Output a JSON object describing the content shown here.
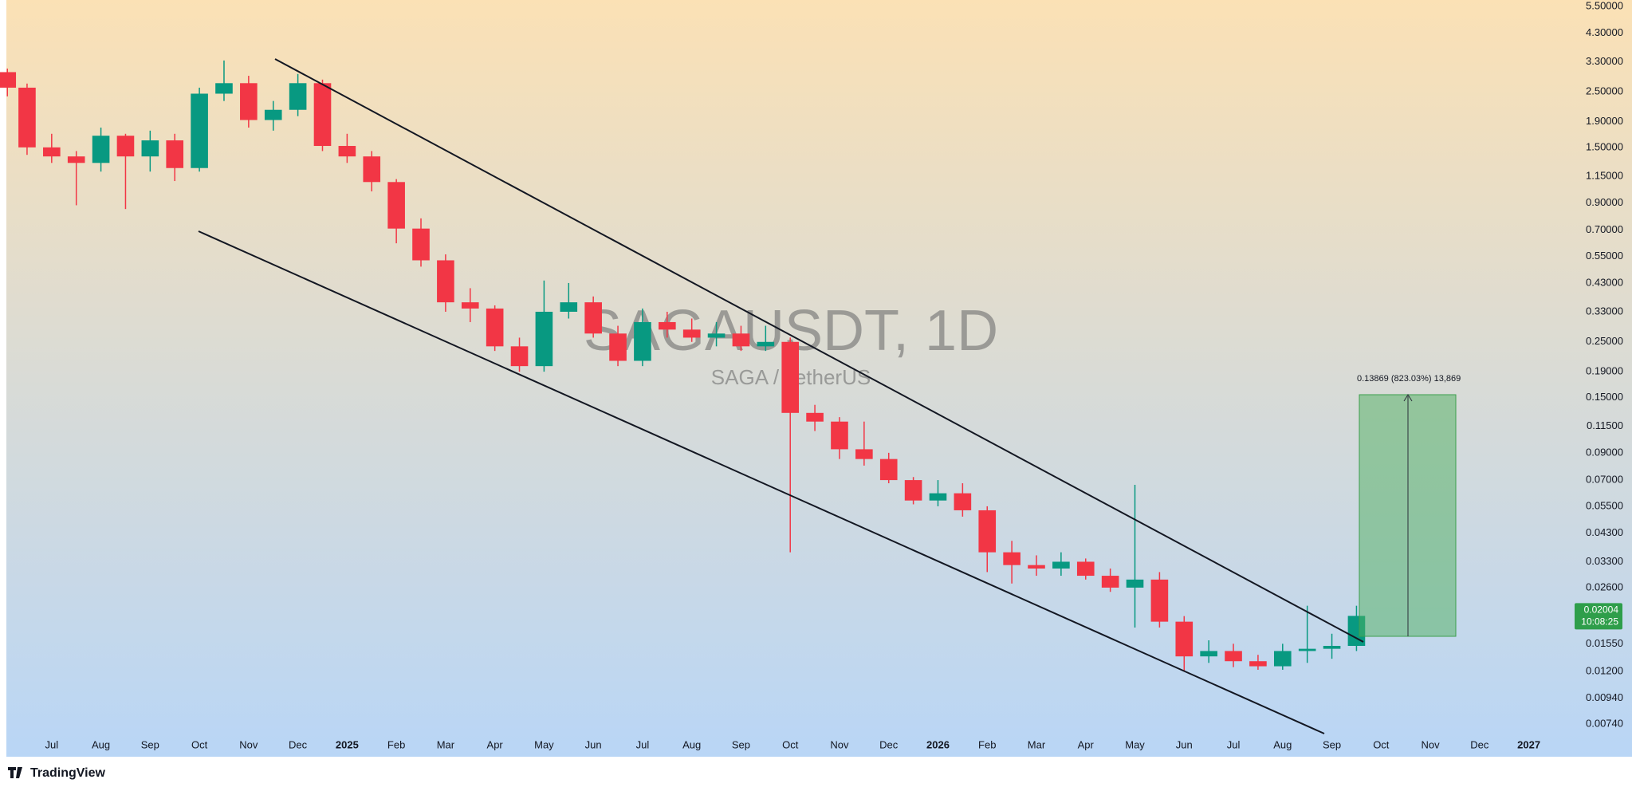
{
  "chart_data": {
    "type": "candlestick",
    "title": "SAGAUSDT, 1D",
    "subtitle": "SAGA / TetherUS",
    "log_scale": true,
    "grid": false,
    "up_color": "#089981",
    "down_color": "#f23645",
    "x": [
      -0.9,
      -0.5,
      0,
      0.5,
      1,
      1.5,
      2,
      2.5,
      3,
      3.5,
      4,
      4.5,
      5,
      5.5,
      6,
      6.5,
      7,
      7.5,
      8,
      8.5,
      9,
      9.5,
      10,
      10.5,
      11,
      11.5,
      12,
      12.5,
      13,
      13.5,
      14,
      14.5,
      15,
      15.5,
      16,
      16.5,
      17,
      17.5,
      18,
      18.5,
      19,
      19.5,
      20,
      20.5,
      21,
      21.5,
      22,
      22.5,
      23,
      23.5,
      24,
      24.5,
      25,
      25.5,
      26,
      26.5
    ],
    "open": [
      3.0,
      2.6,
      1.5,
      1.38,
      1.3,
      1.67,
      1.38,
      1.6,
      1.24,
      2.46,
      2.71,
      1.93,
      2.12,
      2.71,
      1.52,
      1.38,
      1.09,
      0.71,
      0.53,
      0.36,
      0.34,
      0.24,
      0.2,
      0.33,
      0.36,
      0.27,
      0.21,
      0.3,
      0.28,
      0.26,
      0.27,
      0.24,
      0.25,
      0.13,
      0.12,
      0.093,
      0.085,
      0.07,
      0.058,
      0.062,
      0.053,
      0.036,
      0.032,
      0.031,
      0.033,
      0.029,
      0.026,
      0.028,
      0.019,
      0.0138,
      0.0145,
      0.0132,
      0.0126,
      0.0145,
      0.0148,
      0.0152
    ],
    "high": [
      3.1,
      2.7,
      1.7,
      1.45,
      1.8,
      1.7,
      1.75,
      1.7,
      2.6,
      3.34,
      2.9,
      2.3,
      2.95,
      2.8,
      1.7,
      1.45,
      1.12,
      0.78,
      0.56,
      0.41,
      0.35,
      0.26,
      0.44,
      0.43,
      0.38,
      0.29,
      0.34,
      0.33,
      0.31,
      0.3,
      0.29,
      0.29,
      0.26,
      0.14,
      0.125,
      0.12,
      0.09,
      0.072,
      0.07,
      0.068,
      0.055,
      0.04,
      0.035,
      0.036,
      0.034,
      0.031,
      0.067,
      0.03,
      0.02,
      0.016,
      0.0155,
      0.014,
      0.0155,
      0.022,
      0.017,
      0.022
    ],
    "low": [
      2.4,
      1.4,
      1.3,
      0.88,
      1.2,
      0.85,
      1.2,
      1.1,
      1.2,
      2.3,
      1.8,
      1.75,
      2.0,
      1.45,
      1.3,
      1.0,
      0.62,
      0.5,
      0.33,
      0.3,
      0.23,
      0.19,
      0.19,
      0.31,
      0.26,
      0.2,
      0.2,
      0.26,
      0.25,
      0.24,
      0.23,
      0.23,
      0.036,
      0.11,
      0.085,
      0.08,
      0.068,
      0.056,
      0.055,
      0.05,
      0.03,
      0.027,
      0.029,
      0.029,
      0.028,
      0.025,
      0.018,
      0.018,
      0.012,
      0.013,
      0.0125,
      0.0122,
      0.0122,
      0.013,
      0.0135,
      0.0145
    ],
    "close": [
      2.6,
      1.5,
      1.38,
      1.3,
      1.67,
      1.38,
      1.6,
      1.24,
      2.46,
      2.71,
      1.93,
      2.12,
      2.71,
      1.52,
      1.38,
      1.09,
      0.71,
      0.53,
      0.36,
      0.34,
      0.24,
      0.2,
      0.33,
      0.36,
      0.27,
      0.21,
      0.3,
      0.28,
      0.26,
      0.27,
      0.24,
      0.25,
      0.13,
      0.12,
      0.093,
      0.085,
      0.07,
      0.058,
      0.062,
      0.053,
      0.036,
      0.032,
      0.031,
      0.033,
      0.029,
      0.026,
      0.028,
      0.019,
      0.0138,
      0.0145,
      0.0132,
      0.0126,
      0.0145,
      0.0148,
      0.0152,
      0.02004
    ],
    "xlim": [
      -0.92,
      30.8
    ],
    "xticks": [
      {
        "value": 0,
        "label": "Jul"
      },
      {
        "value": 1,
        "label": "Aug"
      },
      {
        "value": 2,
        "label": "Sep"
      },
      {
        "value": 3,
        "label": "Oct"
      },
      {
        "value": 4,
        "label": "Nov"
      },
      {
        "value": 5,
        "label": "Dec"
      },
      {
        "value": 6,
        "label": "2025"
      },
      {
        "value": 7,
        "label": "Feb"
      },
      {
        "value": 8,
        "label": "Mar"
      },
      {
        "value": 9,
        "label": "Apr"
      },
      {
        "value": 10,
        "label": "May"
      },
      {
        "value": 11,
        "label": "Jun"
      },
      {
        "value": 12,
        "label": "Jul"
      },
      {
        "value": 13,
        "label": "Aug"
      },
      {
        "value": 14,
        "label": "Sep"
      },
      {
        "value": 15,
        "label": "Oct"
      },
      {
        "value": 16,
        "label": "Nov"
      },
      {
        "value": 17,
        "label": "Dec"
      },
      {
        "value": 18,
        "label": "2026"
      },
      {
        "value": 19,
        "label": "Feb"
      },
      {
        "value": 20,
        "label": "Mar"
      },
      {
        "value": 21,
        "label": "Apr"
      },
      {
        "value": 22,
        "label": "May"
      },
      {
        "value": 23,
        "label": "Jun"
      },
      {
        "value": 24,
        "label": "Jul"
      },
      {
        "value": 25,
        "label": "Aug"
      },
      {
        "value": 26,
        "label": "Sep"
      },
      {
        "value": 27,
        "label": "Oct"
      },
      {
        "value": 28,
        "label": "Nov"
      },
      {
        "value": 29,
        "label": "Dec"
      },
      {
        "value": 30,
        "label": "2027"
      }
    ],
    "ylim": [
      0.00658,
      5.83
    ],
    "yticks": [
      {
        "value": 5.5,
        "label": "5.50000"
      },
      {
        "value": 4.3,
        "label": "4.30000"
      },
      {
        "value": 3.3,
        "label": "3.30000"
      },
      {
        "value": 2.5,
        "label": "2.50000"
      },
      {
        "value": 1.9,
        "label": "1.90000"
      },
      {
        "value": 1.5,
        "label": "1.50000"
      },
      {
        "value": 1.15,
        "label": "1.15000"
      },
      {
        "value": 0.9,
        "label": "0.90000"
      },
      {
        "value": 0.7,
        "label": "0.70000"
      },
      {
        "value": 0.55,
        "label": "0.55000"
      },
      {
        "value": 0.43,
        "label": "0.43000"
      },
      {
        "value": 0.33,
        "label": "0.33000"
      },
      {
        "value": 0.25,
        "label": "0.25000"
      },
      {
        "value": 0.19,
        "label": "0.19000"
      },
      {
        "value": 0.15,
        "label": "0.15000"
      },
      {
        "value": 0.115,
        "label": "0.11500"
      },
      {
        "value": 0.09,
        "label": "0.09000"
      },
      {
        "value": 0.07,
        "label": "0.07000"
      },
      {
        "value": 0.055,
        "label": "0.05500"
      },
      {
        "value": 0.043,
        "label": "0.04300"
      },
      {
        "value": 0.033,
        "label": "0.03300"
      },
      {
        "value": 0.026,
        "label": "0.02600"
      },
      {
        "value": 0.0155,
        "label": "0.01550"
      },
      {
        "value": 0.012,
        "label": "0.01200"
      },
      {
        "value": 0.0094,
        "label": "0.00940"
      },
      {
        "value": 0.0074,
        "label": "0.00740"
      }
    ],
    "annotations": {
      "position_label": "0.13869 (823.03%) 13,869",
      "last_price": "0.02004",
      "countdown": "10:08:25"
    }
  },
  "brand": "TradingView"
}
